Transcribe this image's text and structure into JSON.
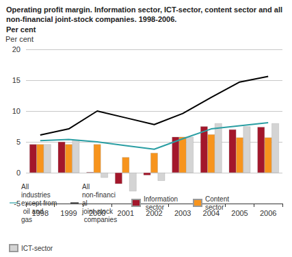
{
  "chart_data": {
    "type": "bar",
    "title": "Operating profit margin. Information sector, ICT-sector, content sector and all non-financial joint-stock companies. 1998-2006.",
    "subtitle": "Per cent",
    "y_label": "Per cent",
    "categories": [
      "1998",
      "1999",
      "2000",
      "2001",
      "2002",
      "2003",
      "2004",
      "2005",
      "2006"
    ],
    "series": [
      {
        "name": "All industries except from oil and gas",
        "type": "line",
        "color": "#2a9ea3",
        "values": [
          5.2,
          5.4,
          5.0,
          4.4,
          3.8,
          5.5,
          7.1,
          7.6,
          8.1
        ]
      },
      {
        "name": "All non-financial joint-stock companies",
        "type": "line",
        "color": "#000000",
        "values": [
          6.1,
          7.1,
          10.0,
          8.9,
          7.8,
          9.6,
          12.2,
          14.7,
          15.6
        ]
      },
      {
        "name": "Information sector",
        "type": "bar",
        "color": "#a3172b",
        "values": [
          4.6,
          5.0,
          0.1,
          -1.8,
          -0.4,
          5.8,
          7.5,
          7.0,
          7.4
        ]
      },
      {
        "name": "Content sector",
        "type": "bar",
        "color": "#f7941d",
        "values": [
          4.6,
          4.6,
          4.6,
          2.5,
          3.2,
          5.8,
          6.2,
          5.7,
          5.7
        ]
      },
      {
        "name": "ICT-sector",
        "type": "bar",
        "color": "#d4d4d4",
        "values": [
          4.6,
          5.3,
          -0.8,
          -3.0,
          -1.3,
          5.8,
          8.0,
          7.5,
          8.0
        ]
      }
    ],
    "ylim": [
      -5,
      20
    ],
    "yticks": [
      -5,
      0,
      5,
      10,
      15,
      20
    ],
    "grid": true,
    "legend": "bottom"
  }
}
